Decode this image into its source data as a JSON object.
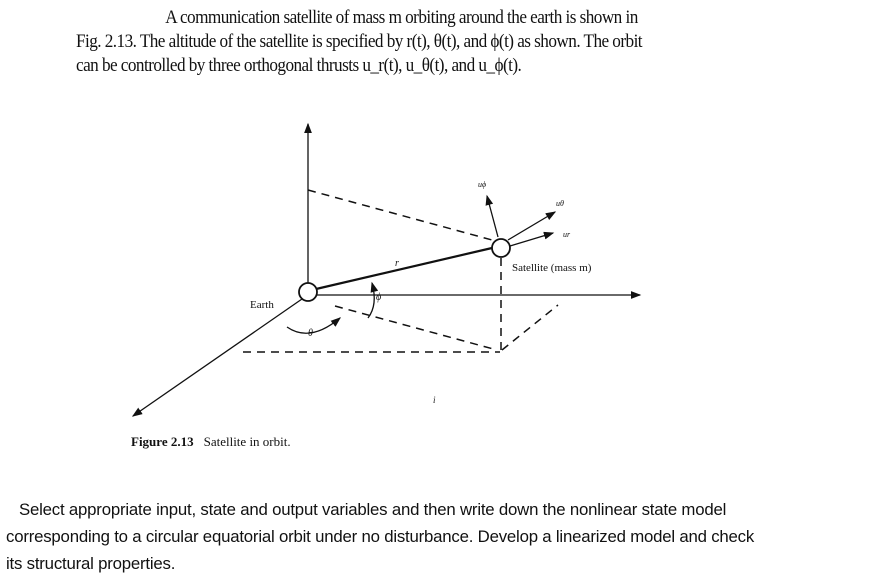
{
  "problem_text": {
    "line1": "A communication satellite of mass m orbiting around the earth is shown in",
    "line2": "Fig. 2.13. The altitude of the satellite is specified by r(t), θ(t), and ϕ(t) as shown. The orbit",
    "line3": "can be controlled by three orthogonal thrusts u_r(t), u_θ(t), and u_ϕ(t)."
  },
  "figure": {
    "labels": {
      "earth": "Earth",
      "satellite": "Satellite (mass m)",
      "r": "r",
      "phi": "ϕ",
      "theta": "θ",
      "u_phi": "uϕ",
      "u_theta": "uθ",
      "u_r": "ur",
      "stray_mark": "i"
    },
    "caption_label": "Figure 2.13",
    "caption_text": "Satellite in orbit."
  },
  "question": {
    "line1": "Select appropriate input, state and output variables and then write down the nonlinear state model",
    "line2": "corresponding to a circular equatorial orbit under no disturbance. Develop a linearized model and check",
    "line3": "its structural  properties."
  }
}
